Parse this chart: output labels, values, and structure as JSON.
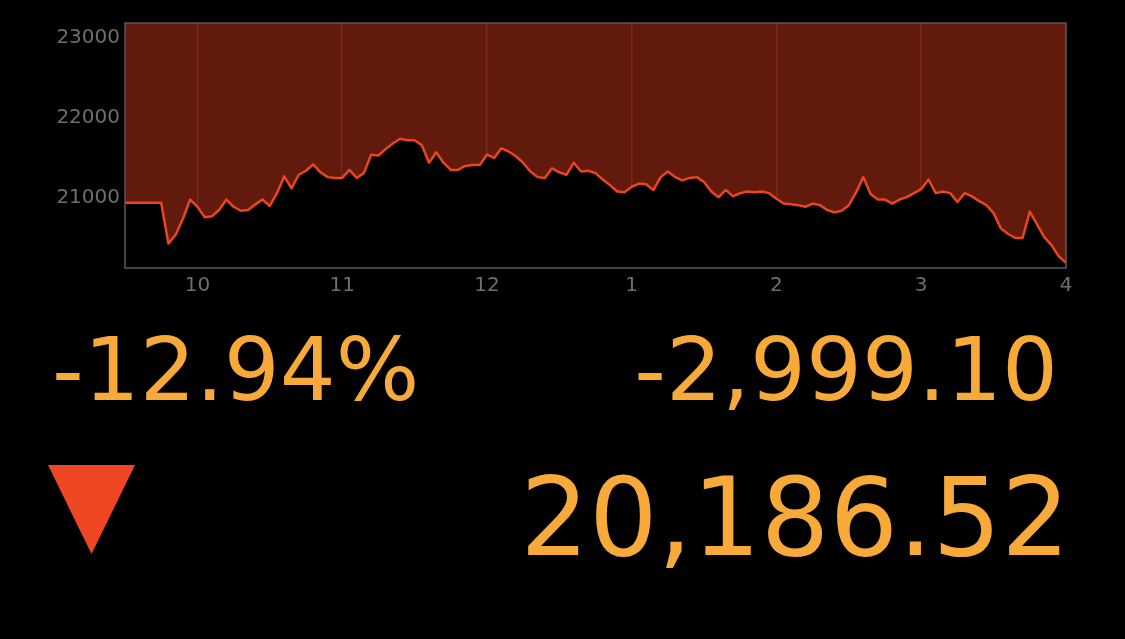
{
  "chart_data": [
    {
      "type": "area",
      "grid": "x",
      "categories": [
        null,
        null,
        null,
        null,
        null,
        null,
        null,
        null,
        null,
        null,
        "10",
        null,
        null,
        null,
        null,
        null,
        null,
        null,
        null,
        null,
        null,
        null,
        null,
        null,
        null,
        null,
        null,
        null,
        null,
        null,
        "11",
        null,
        null,
        null,
        null,
        null,
        null,
        null,
        null,
        null,
        null,
        null,
        null,
        null,
        null,
        null,
        null,
        null,
        null,
        null,
        "12",
        null,
        null,
        null,
        null,
        null,
        null,
        null,
        null,
        null,
        null,
        null,
        null,
        null,
        null,
        null,
        null,
        null,
        null,
        null,
        "1",
        null,
        null,
        null,
        null,
        null,
        null,
        null,
        null,
        null,
        null,
        null,
        null,
        null,
        null,
        null,
        null,
        null,
        null,
        null,
        "2",
        null,
        null,
        null,
        null,
        null,
        null,
        null,
        null,
        null,
        null,
        null,
        null,
        null,
        null,
        null,
        null,
        null,
        null,
        null,
        "3",
        null,
        null,
        null,
        null,
        null,
        null,
        null,
        null,
        null,
        null,
        null,
        null,
        null,
        null,
        null,
        null,
        null,
        null,
        null,
        "4"
      ],
      "ylim": [
        20125,
        23185
      ],
      "yticks": [
        21000,
        22000,
        23000
      ],
      "series": [
        {
          "color": "#ea4420",
          "values": [
            20940,
            20940,
            20940,
            20940,
            20940,
            20940,
            20430,
            20540,
            20740,
            20980,
            20890,
            20760,
            20770,
            20850,
            20980,
            20890,
            20840,
            20850,
            20920,
            20980,
            20900,
            21060,
            21270,
            21120,
            21290,
            21340,
            21420,
            21320,
            21260,
            21250,
            21250,
            21350,
            21250,
            21310,
            21540,
            21530,
            21610,
            21680,
            21740,
            21720,
            21720,
            21660,
            21440,
            21570,
            21440,
            21350,
            21350,
            21400,
            21410,
            21410,
            21540,
            21500,
            21620,
            21580,
            21520,
            21440,
            21330,
            21260,
            21250,
            21370,
            21320,
            21290,
            21440,
            21330,
            21340,
            21310,
            21230,
            21160,
            21080,
            21070,
            21140,
            21180,
            21170,
            21100,
            21260,
            21330,
            21260,
            21220,
            21250,
            21260,
            21200,
            21080,
            21010,
            21100,
            21020,
            21060,
            21080,
            21070,
            21080,
            21060,
            20990,
            20930,
            20920,
            20910,
            20890,
            20930,
            20910,
            20850,
            20820,
            20840,
            20910,
            21070,
            21260,
            21050,
            20980,
            20980,
            20930,
            20980,
            21010,
            21060,
            21110,
            21230,
            21060,
            21080,
            21060,
            20950,
            21060,
            21020,
            20960,
            20910,
            20810,
            20620,
            20550,
            20500,
            20500,
            20830,
            20670,
            20510,
            20410,
            20270,
            20190
          ]
        }
      ]
    },
    {
      "type": "other",
      "annotations": [
        "-12.94%",
        "-2,999.10",
        "20,186.52"
      ]
    }
  ]
}
